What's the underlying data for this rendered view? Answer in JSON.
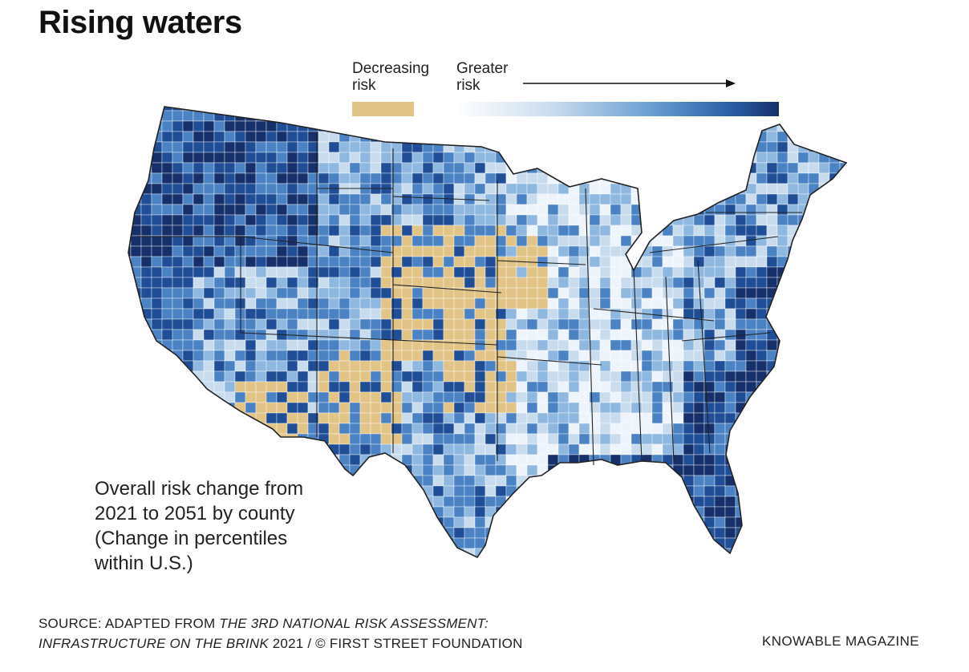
{
  "title": "Rising waters",
  "legend": {
    "decreasing_label_1": "Decreasing",
    "decreasing_label_2": "risk",
    "greater_label_1": "Greater",
    "greater_label_2": "risk",
    "decreasing_color": "#e2c486",
    "scale_colors": [
      "#ffffff",
      "#c9dcee",
      "#6a9fd2",
      "#2a5fa8",
      "#15306a"
    ]
  },
  "map": {
    "subject": "Contiguous United States choropleth by county",
    "palette": {
      "decreasing": "#e2c486",
      "very_low": "#eef4fb",
      "low": "#c9dcee",
      "mid": "#8fb8e0",
      "high": "#4a82c4",
      "very_high": "#1f4e96",
      "extreme": "#15306a"
    },
    "borders": "#2a2a2a"
  },
  "caption": {
    "line1": "Overall risk change from",
    "line2": "2021 to 2051 by county",
    "line3": "(Change in percentiles",
    "line4": "within U.S.)"
  },
  "source": {
    "prefix": "SOURCE: ADAPTED FROM ",
    "title_italic_1": "THE 3RD NATIONAL RISK ASSESSMENT:",
    "title_italic_2": "INFRASTRUCTURE ON THE BRINK",
    "suffix": " 2021 / © FIRST STREET FOUNDATION"
  },
  "credit": "KNOWABLE MAGAZINE"
}
